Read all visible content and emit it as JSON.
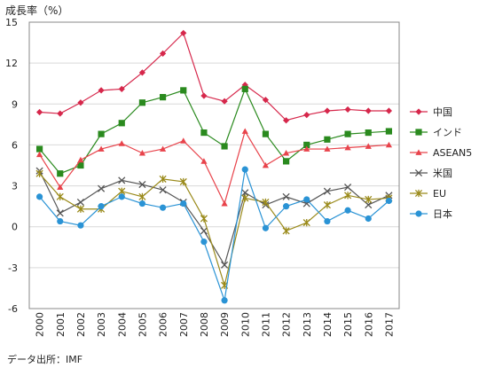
{
  "chart_data": {
    "type": "line",
    "title": "成長率（%）",
    "source": "データ出所：IMF",
    "x": [
      "2000",
      "2001",
      "2002",
      "2003",
      "2004",
      "2005",
      "2006",
      "2007",
      "2008",
      "2009",
      "2010",
      "2011",
      "2012",
      "2013",
      "2014",
      "2015",
      "2016",
      "2017"
    ],
    "ylim": [
      -6,
      15
    ],
    "yticks": [
      -6,
      -3,
      0,
      3,
      6,
      9,
      12,
      15
    ],
    "grid": "horizontal",
    "legend_position": "right",
    "series": [
      {
        "name": "中国",
        "color": "#d6274b",
        "marker": "diamond",
        "values": [
          8.4,
          8.3,
          9.1,
          10.0,
          10.1,
          11.3,
          12.7,
          14.2,
          9.6,
          9.2,
          10.4,
          9.3,
          7.8,
          8.2,
          8.5,
          8.6,
          8.5,
          8.5
        ]
      },
      {
        "name": "インド",
        "color": "#2a8a1e",
        "marker": "square",
        "values": [
          5.7,
          3.9,
          4.5,
          6.8,
          7.6,
          9.1,
          9.5,
          10.0,
          6.9,
          5.9,
          10.1,
          6.8,
          4.8,
          6.0,
          6.4,
          6.8,
          6.9,
          7.0
        ]
      },
      {
        "name": "ASEAN5",
        "color": "#e8434b",
        "marker": "triangle",
        "values": [
          5.3,
          2.9,
          4.9,
          5.7,
          6.1,
          5.4,
          5.7,
          6.3,
          4.8,
          1.7,
          7.0,
          4.5,
          5.4,
          5.7,
          5.7,
          5.8,
          5.9,
          6.0
        ]
      },
      {
        "name": "米国",
        "color": "#555555",
        "marker": "x",
        "values": [
          4.1,
          1.0,
          1.8,
          2.8,
          3.4,
          3.1,
          2.7,
          1.8,
          -0.3,
          -2.8,
          2.5,
          1.6,
          2.2,
          1.7,
          2.6,
          2.9,
          1.6,
          2.3
        ]
      },
      {
        "name": "EU",
        "color": "#9a8a1a",
        "marker": "star",
        "values": [
          3.9,
          2.2,
          1.3,
          1.3,
          2.6,
          2.2,
          3.5,
          3.3,
          0.6,
          -4.3,
          2.1,
          1.8,
          -0.3,
          0.3,
          1.6,
          2.3,
          2.0,
          2.1
        ]
      },
      {
        "name": "日本",
        "color": "#2a93d5",
        "marker": "circle",
        "values": [
          2.2,
          0.4,
          0.1,
          1.5,
          2.2,
          1.7,
          1.4,
          1.7,
          -1.1,
          -5.4,
          4.2,
          -0.1,
          1.5,
          2.0,
          0.4,
          1.2,
          0.6,
          1.9
        ]
      }
    ]
  }
}
